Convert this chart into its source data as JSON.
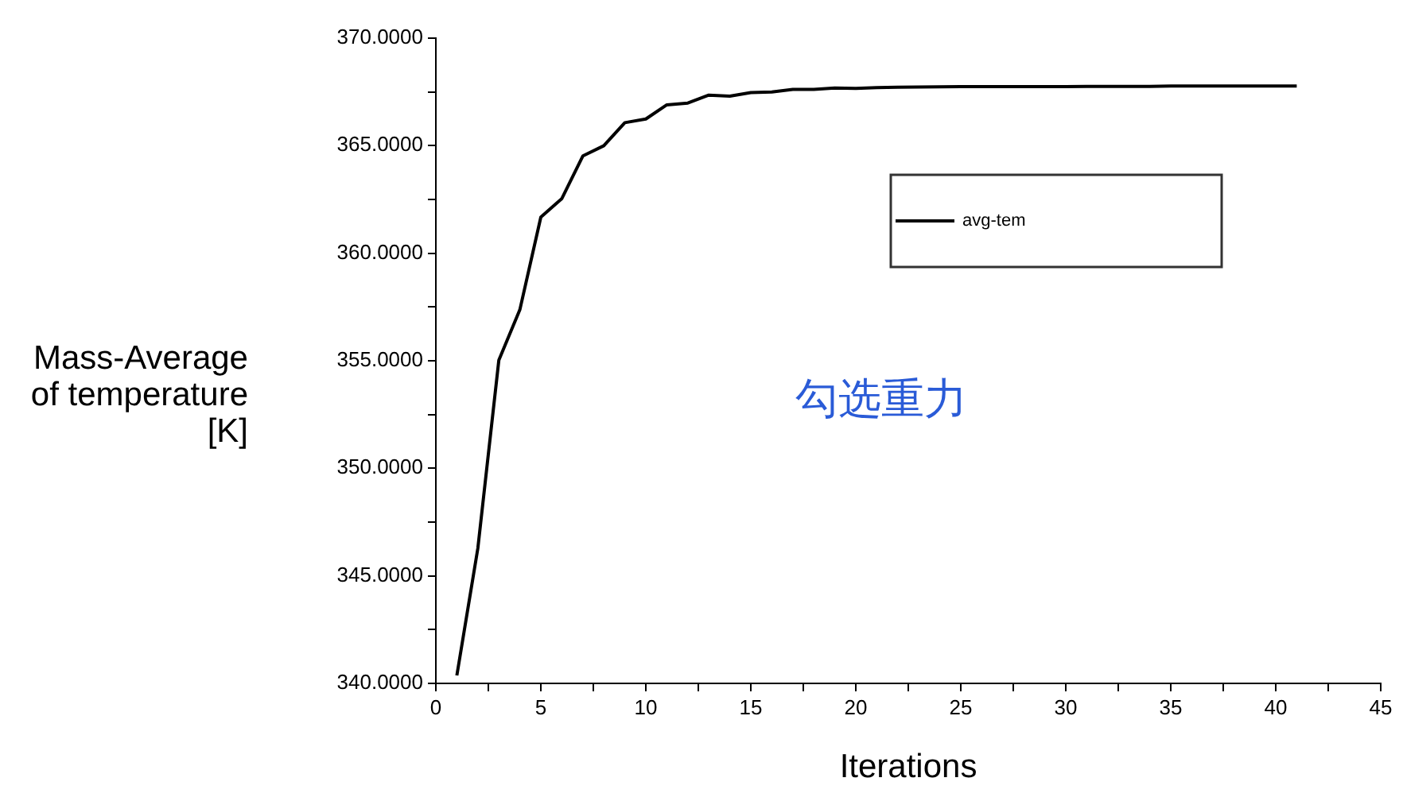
{
  "chart_data": {
    "type": "line",
    "xlabel": "Iterations",
    "ylabel": "Mass-Average of temperature [K]",
    "x": [
      1,
      2,
      3,
      4,
      5,
      6,
      7,
      8,
      9,
      10,
      11,
      12,
      13,
      14,
      15,
      16,
      17,
      18,
      19,
      20,
      21,
      22,
      23,
      24,
      25,
      26,
      27,
      28,
      29,
      30,
      31,
      32,
      33,
      34,
      35,
      36,
      37,
      38,
      39,
      40,
      41
    ],
    "series": [
      {
        "name": "avg-tem",
        "color": "#000000",
        "values": [
          340.37,
          346.28,
          355.03,
          357.37,
          361.68,
          362.54,
          364.52,
          365.0,
          366.07,
          366.24,
          366.9,
          366.98,
          367.35,
          367.3,
          367.47,
          367.5,
          367.62,
          367.62,
          367.68,
          367.66,
          367.7,
          367.72,
          367.73,
          367.74,
          367.75,
          367.75,
          367.75,
          367.75,
          367.75,
          367.75,
          367.76,
          367.76,
          367.76,
          367.76,
          367.77,
          367.77,
          367.77,
          367.77,
          367.77,
          367.77,
          367.77
        ]
      }
    ],
    "xlim": [
      0,
      45
    ],
    "xticks": [
      0,
      {
        "value": 2.5,
        "label": null
      },
      5,
      {
        "value": 7.5,
        "label": null
      },
      10,
      {
        "value": 12.5,
        "label": null
      },
      15,
      {
        "value": 17.5,
        "label": null
      },
      20,
      {
        "value": 22.5,
        "label": null
      },
      25,
      {
        "value": 27.5,
        "label": null
      },
      30,
      {
        "value": 32.5,
        "label": null
      },
      35,
      {
        "value": 37.5,
        "label": null
      },
      40,
      {
        "value": 42.5,
        "label": null
      },
      45
    ],
    "ylim": [
      340,
      370
    ],
    "yticks": [
      {
        "value": 340,
        "label": "340.0000"
      },
      {
        "value": 342.5,
        "label": null
      },
      {
        "value": 345,
        "label": "345.0000"
      },
      {
        "value": 347.5,
        "label": null
      },
      {
        "value": 350,
        "label": "350.0000"
      },
      {
        "value": 352.5,
        "label": null
      },
      {
        "value": 355,
        "label": "355.0000"
      },
      {
        "value": 357.5,
        "label": null
      },
      {
        "value": 360,
        "label": "360.0000"
      },
      {
        "value": 362.5,
        "label": null
      },
      {
        "value": 365,
        "label": "365.0000"
      },
      {
        "value": 367.5,
        "label": null
      },
      {
        "value": 370,
        "label": "370.0000"
      }
    ],
    "legend": "top right",
    "marker": "none",
    "line_style": "solid",
    "annotations": [
      "勾选重力"
    ]
  }
}
